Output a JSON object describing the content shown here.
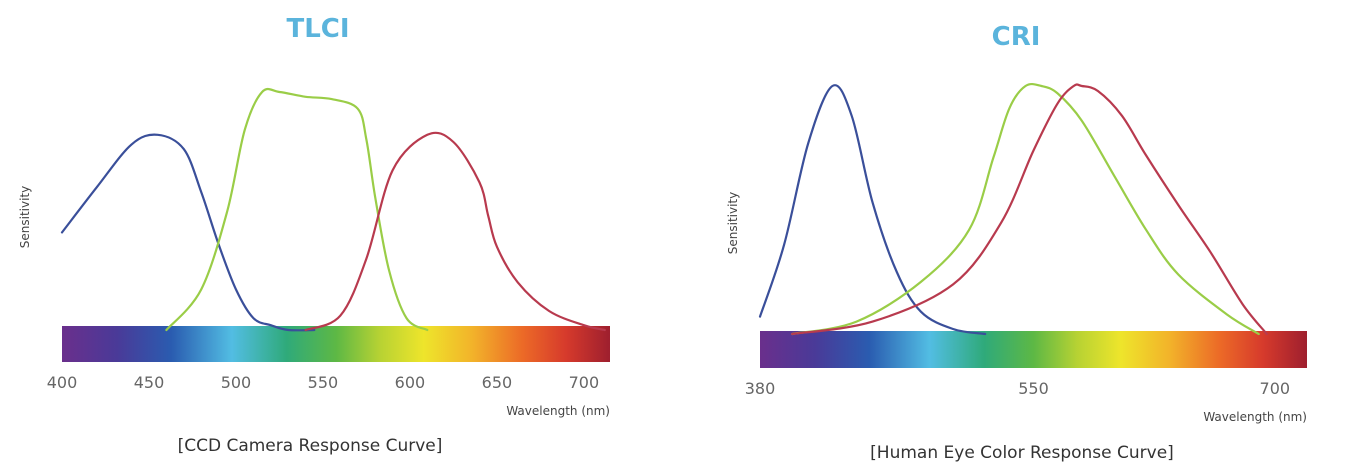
{
  "chart_data": [
    {
      "type": "line",
      "title": "TLCI",
      "ylabel": "Sensitivity",
      "xlabel": "Wavelength (nm)",
      "caption": "[CCD Camera Response Curve]",
      "x_ticks": [
        400,
        450,
        500,
        550,
        600,
        650,
        700
      ],
      "xlim": [
        400,
        715
      ],
      "ylim": [
        0,
        1
      ],
      "grid": false,
      "spectrum_bar": true,
      "series": [
        {
          "color": "#3a4f9a",
          "x": [
            400,
            420,
            440,
            455,
            470,
            480,
            490,
            500,
            510,
            520,
            530,
            545
          ],
          "y": [
            0.41,
            0.6,
            0.78,
            0.82,
            0.76,
            0.58,
            0.36,
            0.17,
            0.05,
            0.02,
            0.0,
            0.0
          ]
        },
        {
          "color": "#9acd47",
          "x": [
            460,
            480,
            495,
            505,
            515,
            525,
            540,
            555,
            570,
            575,
            580,
            588,
            598,
            610
          ],
          "y": [
            0.0,
            0.17,
            0.5,
            0.84,
            1.0,
            1.0,
            0.98,
            0.97,
            0.93,
            0.8,
            0.56,
            0.25,
            0.05,
            0.0
          ]
        },
        {
          "color": "#b83a4e",
          "x": [
            540,
            560,
            575,
            590,
            610,
            625,
            640,
            645,
            650,
            662,
            680,
            700,
            712
          ],
          "y": [
            0.0,
            0.06,
            0.3,
            0.67,
            0.82,
            0.79,
            0.62,
            0.48,
            0.35,
            0.2,
            0.08,
            0.02,
            0.0
          ]
        }
      ]
    },
    {
      "type": "line",
      "title": "CRI",
      "ylabel": "Sensitivity",
      "xlabel": "Wavelength (nm)",
      "caption": "[Human Eye Color Response Curve]",
      "x_ticks": [
        380,
        550,
        700
      ],
      "xlim": [
        380,
        720
      ],
      "ylim": [
        0,
        1
      ],
      "grid": false,
      "spectrum_bar": true,
      "series": [
        {
          "color": "#3a4f9a",
          "x": [
            380,
            395,
            410,
            425,
            437,
            450,
            465,
            480,
            500,
            520
          ],
          "y": [
            0.07,
            0.36,
            0.77,
            1.0,
            0.88,
            0.53,
            0.25,
            0.09,
            0.02,
            0.0
          ]
        },
        {
          "color": "#9acd47",
          "x": [
            400,
            440,
            480,
            510,
            525,
            535,
            545,
            555,
            565,
            580,
            600,
            620,
            640,
            670,
            690
          ],
          "y": [
            0.0,
            0.05,
            0.21,
            0.42,
            0.71,
            0.91,
            1.0,
            1.0,
            0.97,
            0.86,
            0.64,
            0.42,
            0.24,
            0.08,
            0.0
          ]
        },
        {
          "color": "#b83a4e",
          "x": [
            400,
            450,
            500,
            530,
            550,
            565,
            575,
            580,
            590,
            605,
            620,
            640,
            660,
            680,
            695
          ],
          "y": [
            0.0,
            0.05,
            0.2,
            0.45,
            0.74,
            0.93,
            1.0,
            1.0,
            0.98,
            0.88,
            0.72,
            0.52,
            0.33,
            0.12,
            0.0
          ]
        }
      ]
    }
  ]
}
